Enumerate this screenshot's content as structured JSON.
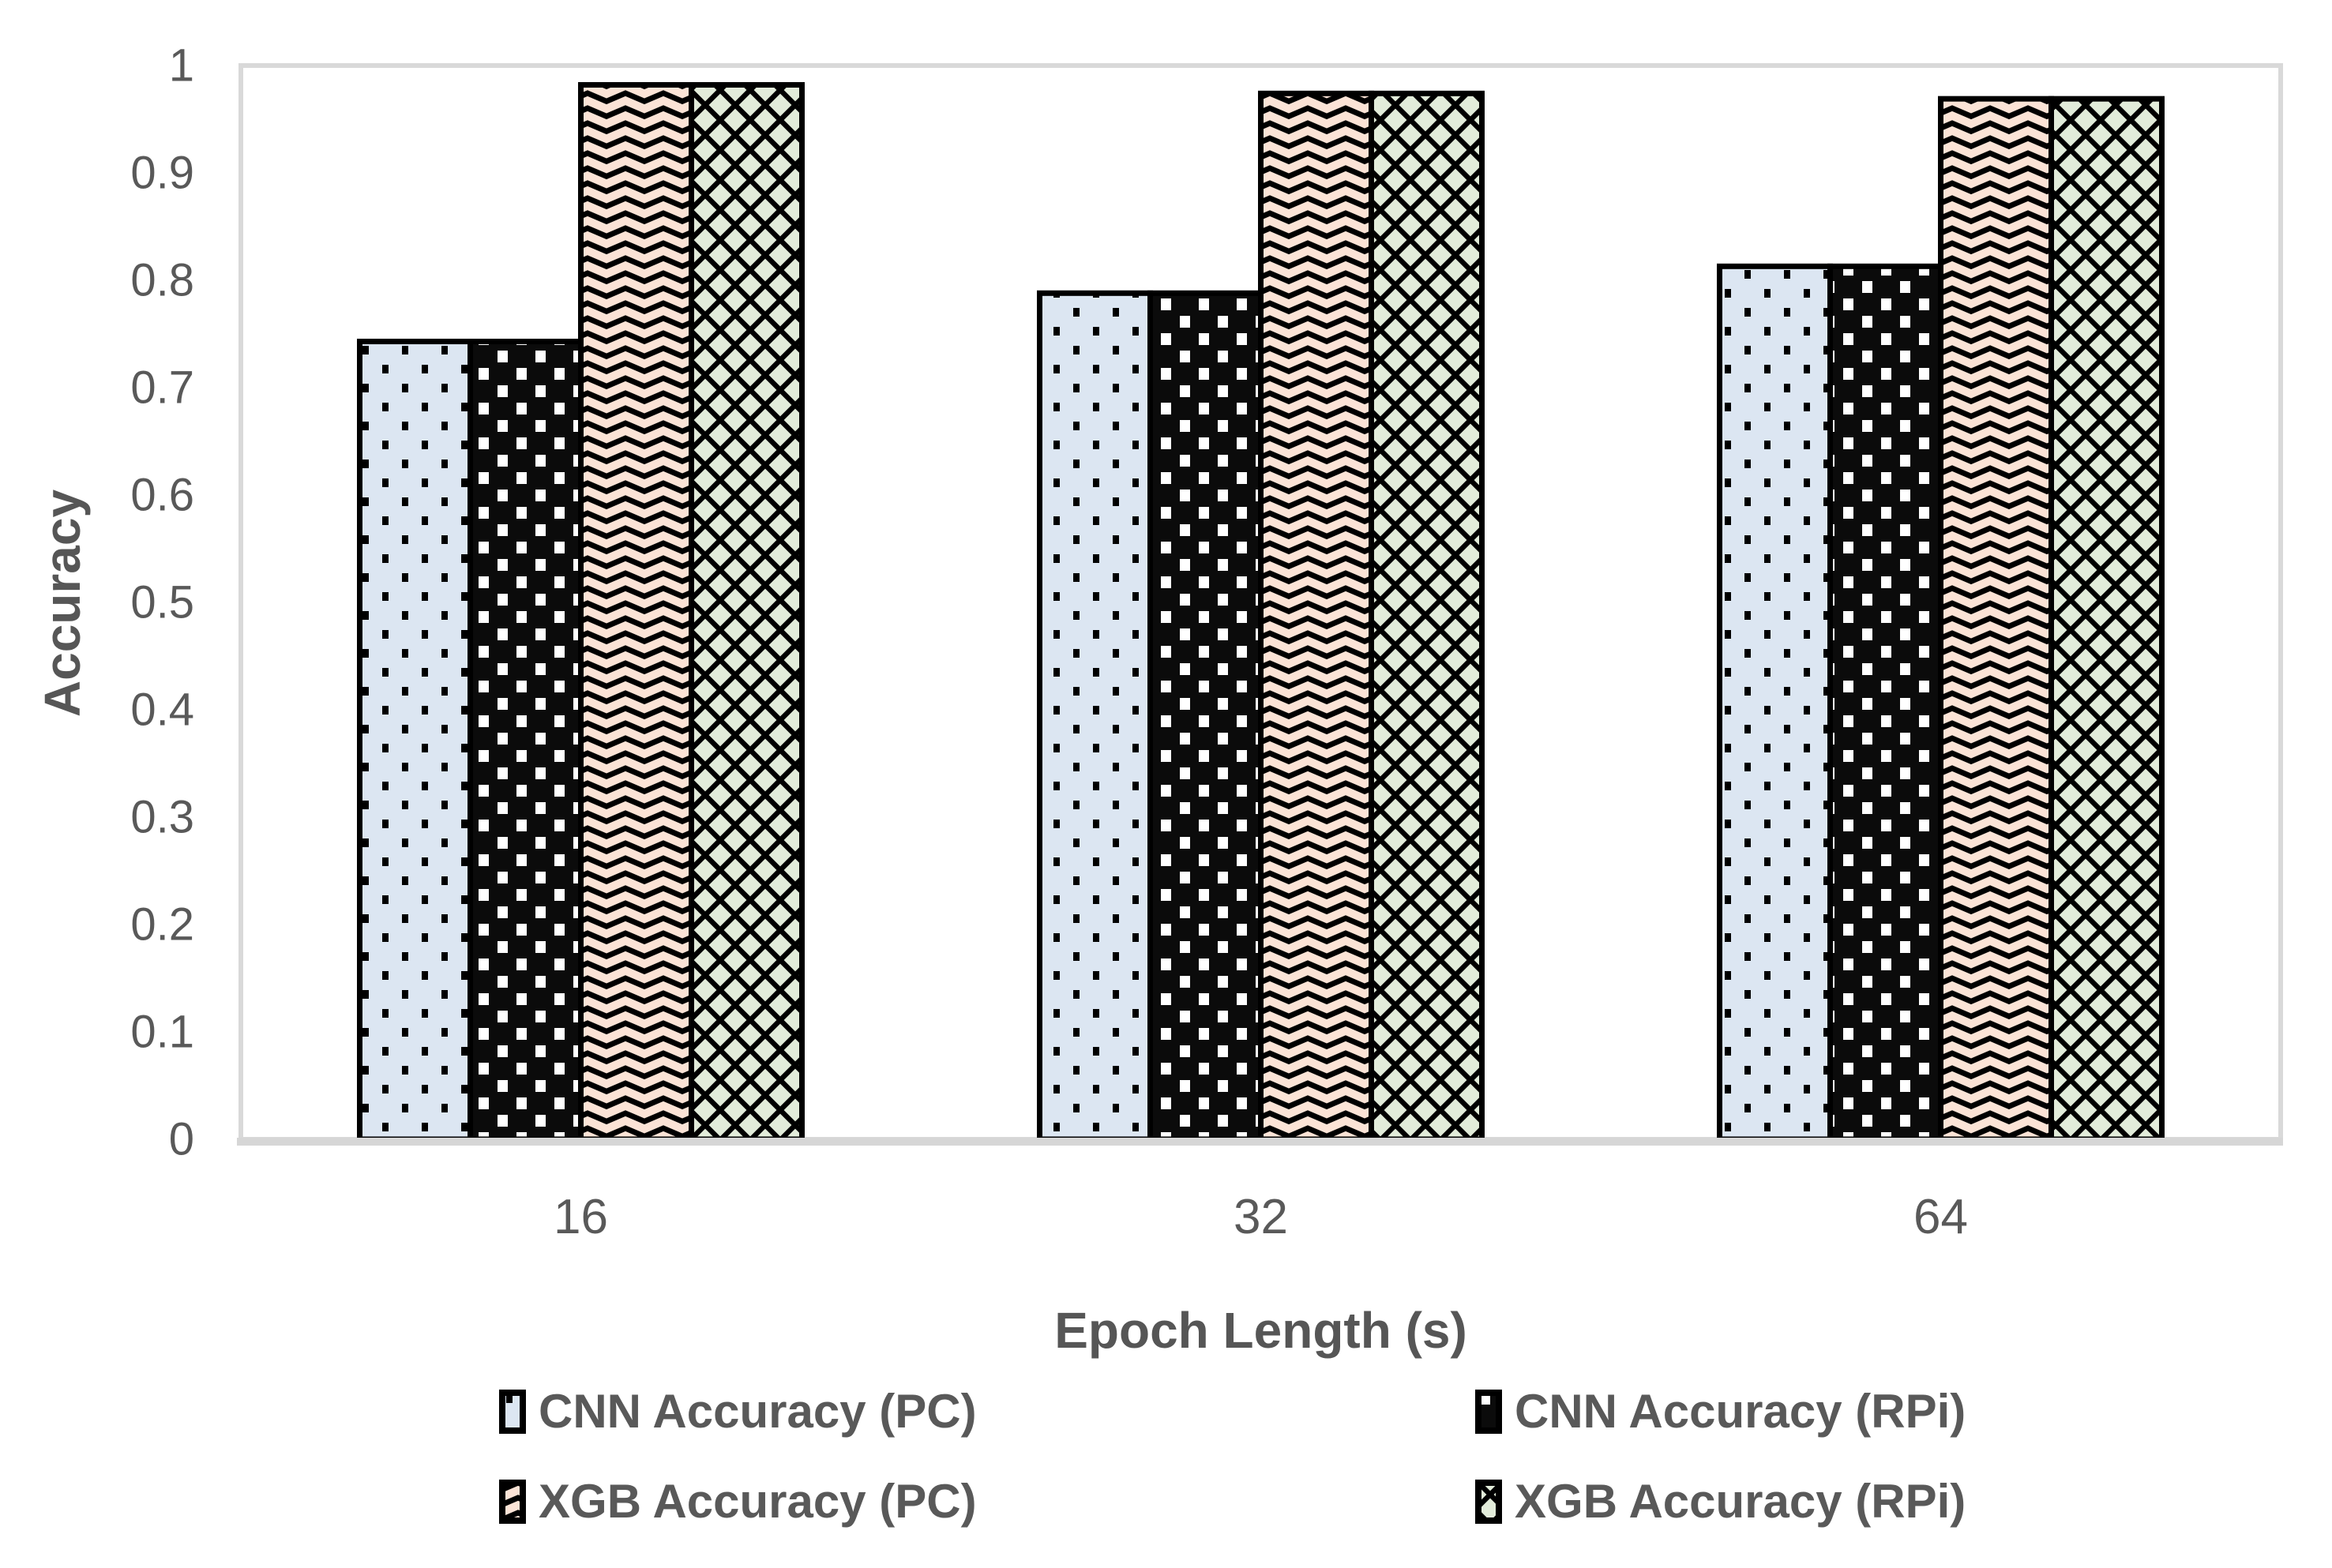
{
  "chart_data": {
    "type": "bar",
    "title": "",
    "categories": [
      "16",
      "32",
      "64"
    ],
    "series": [
      {
        "name": "CNN Accuracy (PC)",
        "pattern": "small-dots-on-light-blue",
        "fill": "#dce6f2",
        "values": [
          0.743,
          0.788,
          0.813
        ]
      },
      {
        "name": "CNN Accuracy (RPi)",
        "pattern": "white-dots-on-black",
        "fill": "#0b0b0b",
        "values": [
          0.743,
          0.788,
          0.813
        ]
      },
      {
        "name": "XGB Accuracy (PC)",
        "pattern": "black-waves-on-peach",
        "fill": "#fbe3d6",
        "values": [
          0.982,
          0.974,
          0.969
        ]
      },
      {
        "name": "XGB Accuracy (RPi)",
        "pattern": "diagonal-crosshatch-on-green",
        "fill": "#e2ecda",
        "values": [
          0.982,
          0.974,
          0.969
        ]
      }
    ],
    "xlabel": "Epoch Length (s)",
    "ylabel": "Accuracy",
    "ylim": [
      0,
      1
    ],
    "ytick_step": 0.1,
    "yticks": [
      "0",
      "0.1",
      "0.2",
      "0.3",
      "0.4",
      "0.5",
      "0.6",
      "0.7",
      "0.8",
      "0.9",
      "1"
    ],
    "grid": false,
    "legend_position": "bottom-two-columns",
    "bar_border_color": "#000000",
    "plot_border_color": "#d9d9d9",
    "axis_line_color": "#d6d6d6",
    "text_color": "#595959"
  }
}
